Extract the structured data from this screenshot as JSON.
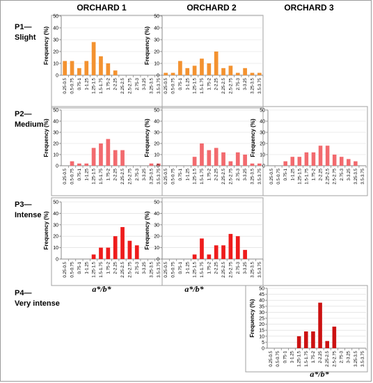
{
  "figure": {
    "columns": [
      "ORCHARD 1",
      "ORCHARD 2",
      "ORCHARD 3"
    ],
    "rows": [
      {
        "code": "P1",
        "dash": "—",
        "name": "Slight"
      },
      {
        "code": "P2",
        "dash": "—",
        "name": "Medium"
      },
      {
        "code": "P3",
        "dash": "—",
        "name": "Intense"
      },
      {
        "code": "P4",
        "dash": "—",
        "name": "Very intense"
      }
    ],
    "y_axis_label": "Frequency (%)",
    "x_axis_label": "a*/b*"
  },
  "categories": [
    "0.25-0.5",
    "0.5-0.75",
    "0.75-1",
    "1-1.25",
    "1.25-1.5",
    "1.5-1.75",
    "1.75-2",
    "2-2.25",
    "2.25-2.5",
    "2.5-2.75",
    "2.75-3",
    "3-3.25",
    "3.25-3.5",
    "3.5-3.75"
  ],
  "colors": {
    "P1": "#F39230",
    "P2": "#F26A6E",
    "P3": "#EE1C1C",
    "P4": "#CC1111",
    "axis": "#8a8a8a",
    "grid": "#d9d9d9"
  },
  "chart_data": [
    {
      "type": "bar",
      "row": "P1",
      "column": "ORCHARD 1",
      "ylim": [
        0,
        50
      ],
      "yticks": [
        0,
        10,
        20,
        30,
        40,
        50
      ],
      "values": [
        12,
        12,
        6,
        12,
        28,
        16,
        10,
        4,
        0,
        0,
        0,
        0,
        0,
        0
      ]
    },
    {
      "type": "bar",
      "row": "P1",
      "column": "ORCHARD 2",
      "ylim": [
        0,
        50
      ],
      "yticks": [
        0,
        10,
        20,
        30,
        40,
        50
      ],
      "values": [
        2,
        2,
        12,
        6,
        8,
        14,
        10,
        20,
        6,
        8,
        2,
        6,
        2,
        2
      ]
    },
    {
      "type": "bar",
      "row": "P2",
      "column": "ORCHARD 1",
      "ylim": [
        0,
        50
      ],
      "yticks": [
        0,
        10,
        20,
        30,
        40,
        50
      ],
      "values": [
        0,
        4,
        2,
        2,
        16,
        20,
        24,
        14,
        14,
        0,
        0,
        0,
        2,
        2
      ]
    },
    {
      "type": "bar",
      "row": "P2",
      "column": "ORCHARD 2",
      "ylim": [
        0,
        50
      ],
      "yticks": [
        0,
        10,
        20,
        30,
        40,
        50
      ],
      "values": [
        0,
        0,
        0,
        0,
        8,
        20,
        14,
        16,
        12,
        4,
        12,
        10,
        2,
        2
      ]
    },
    {
      "type": "bar",
      "row": "P2",
      "column": "ORCHARD 3",
      "ylim": [
        0,
        50
      ],
      "yticks": [
        0,
        10,
        20,
        30,
        40,
        50
      ],
      "values": [
        0,
        0,
        4,
        8,
        8,
        12,
        12,
        18,
        18,
        10,
        8,
        6,
        4,
        0
      ]
    },
    {
      "type": "bar",
      "row": "P3",
      "column": "ORCHARD 1",
      "ylim": [
        0,
        50
      ],
      "yticks": [
        0,
        10,
        20,
        30,
        40,
        50
      ],
      "values": [
        0,
        0,
        0,
        0,
        4,
        10,
        10,
        20,
        28,
        16,
        12,
        0,
        0,
        0
      ]
    },
    {
      "type": "bar",
      "row": "P3",
      "column": "ORCHARD 2",
      "ylim": [
        0,
        50
      ],
      "yticks": [
        0,
        10,
        20,
        30,
        40,
        50
      ],
      "values": [
        0,
        0,
        0,
        0,
        4,
        18,
        4,
        12,
        12,
        22,
        20,
        8,
        0,
        0
      ]
    },
    {
      "type": "bar",
      "row": "P4",
      "column": "ORCHARD 3",
      "ylim": [
        0,
        50
      ],
      "yticks": [
        0,
        5,
        10,
        15,
        20,
        25,
        30,
        35,
        40,
        45,
        50
      ],
      "values": [
        0,
        0,
        0,
        0,
        10,
        14,
        14,
        38,
        6,
        18,
        0,
        0,
        0,
        0
      ]
    }
  ]
}
